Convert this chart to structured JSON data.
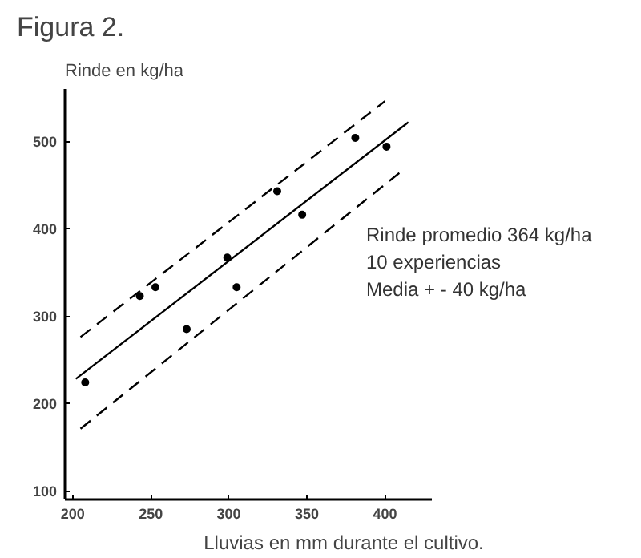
{
  "chart_data": {
    "type": "scatter",
    "title": "Figura 2.",
    "ylabel": "Rinde en kg/ha",
    "xlabel": "Lluvias en mm durante el cultivo.",
    "x": [
      208,
      243,
      253,
      273,
      299,
      305,
      331,
      347,
      381,
      401
    ],
    "series": [
      {
        "color": "#000000",
        "marker": "circle",
        "values": [
          224,
          323,
          333,
          285,
          367,
          333,
          443,
          416,
          504,
          494
        ]
      },
      {
        "type": "line",
        "color": "#000000",
        "line_style": "solid",
        "x": [
          202,
          415
        ],
        "values": [
          228,
          522
        ]
      },
      {
        "type": "line",
        "color": "#000000",
        "line_style": "dashed",
        "x": [
          205,
          400
        ],
        "values": [
          276,
          546
        ]
      },
      {
        "type": "line",
        "color": "#000000",
        "line_style": "dashed",
        "x": [
          205,
          410
        ],
        "values": [
          171,
          465
        ]
      }
    ],
    "xlim": [
      195,
      430
    ],
    "ylim": [
      90,
      560
    ],
    "xticks": [
      200,
      250,
      300,
      350,
      400
    ],
    "yticks": [
      100,
      200,
      300,
      400,
      500
    ],
    "grid": false,
    "annotations": [
      "Rinde promedio 364 kg/ha",
      "10 experiencias",
      "Media + - 40 kg/ha"
    ]
  }
}
